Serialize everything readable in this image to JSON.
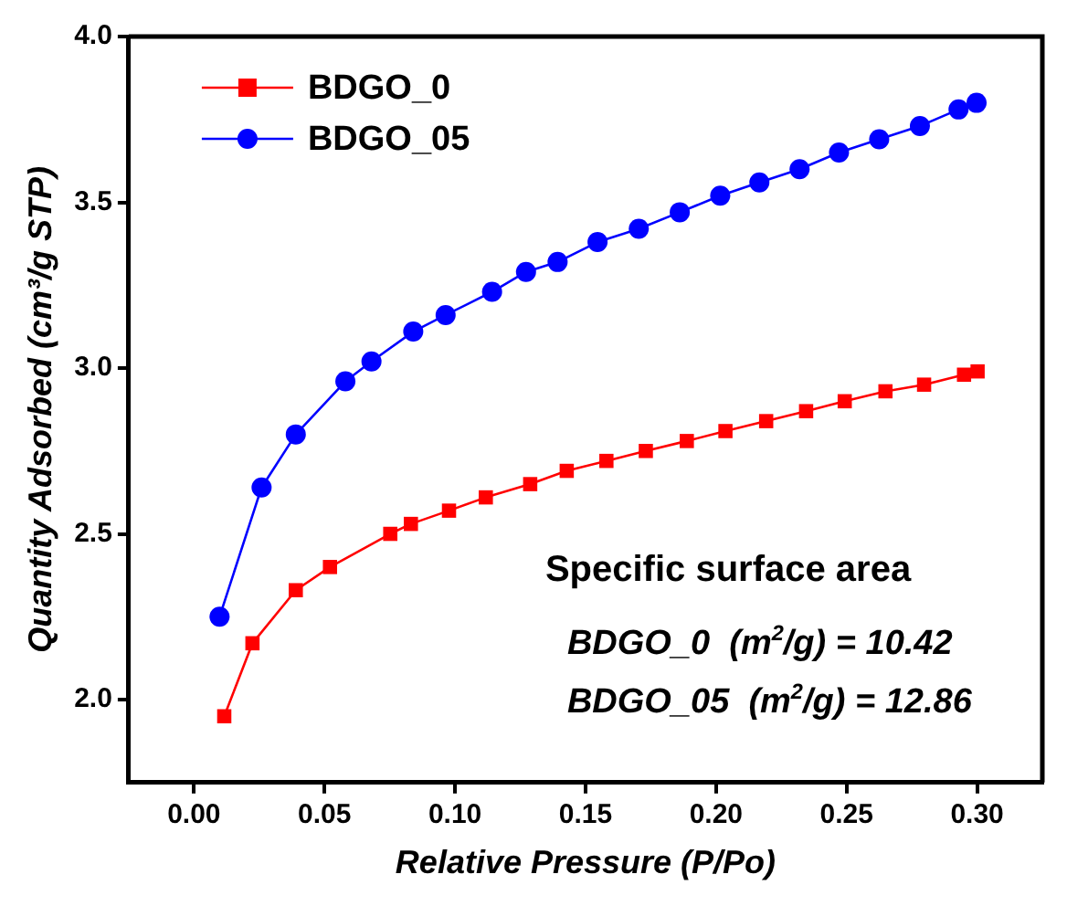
{
  "chart_data": {
    "type": "line",
    "xlabel": "Relative Pressure (P/Po)",
    "ylabel": "Quantity Adsorbed (cm³/g STP)",
    "xlim": [
      -0.025,
      0.325
    ],
    "xticks": [
      {
        "value": 0,
        "label": "0.00"
      },
      {
        "value": 0.05,
        "label": "0.05"
      },
      {
        "value": 0.1,
        "label": "0.10"
      },
      {
        "value": 0.15,
        "label": "0.15"
      },
      {
        "value": 0.2,
        "label": "0.20"
      },
      {
        "value": 0.25,
        "label": "0.25"
      },
      {
        "value": 0.3,
        "label": "0.30"
      }
    ],
    "ylim": [
      1.75,
      4.0
    ],
    "yticks": [
      {
        "value": 2,
        "label": "2.0"
      },
      2.5,
      {
        "value": 3,
        "label": "3.0"
      },
      3.5,
      {
        "value": 4,
        "label": "4.0"
      }
    ],
    "series": [
      {
        "name": "BDGO_0",
        "color": "#ff0000",
        "marker": "square",
        "x": [
          0.0116,
          0.0224,
          0.039,
          0.0521,
          0.0752,
          0.0831,
          0.0977,
          0.1118,
          0.1288,
          0.1428,
          0.158,
          0.1731,
          0.1888,
          0.2036,
          0.2192,
          0.2345,
          0.2493,
          0.2649,
          0.2797,
          0.295,
          0.3002
        ],
        "values": [
          1.95,
          2.17,
          2.33,
          2.4,
          2.5,
          2.53,
          2.57,
          2.61,
          2.65,
          2.69,
          2.72,
          2.75,
          2.78,
          2.81,
          2.84,
          2.87,
          2.9,
          2.93,
          2.95,
          2.98,
          2.99
        ]
      },
      {
        "name": "BDGO_05",
        "color": "#0000ff",
        "marker": "circle",
        "x": [
          0.0098,
          0.0259,
          0.039,
          0.058,
          0.068,
          0.084,
          0.0964,
          0.1142,
          0.1272,
          0.1393,
          0.1546,
          0.1704,
          0.1861,
          0.2016,
          0.2166,
          0.232,
          0.2471,
          0.2625,
          0.2781,
          0.2929,
          0.2998
        ],
        "values": [
          2.25,
          2.64,
          2.8,
          2.96,
          3.02,
          3.11,
          3.16,
          3.23,
          3.29,
          3.32,
          3.38,
          3.42,
          3.47,
          3.52,
          3.56,
          3.6,
          3.65,
          3.69,
          3.73,
          3.78,
          3.8
        ]
      }
    ],
    "legend": "top left",
    "grid": false,
    "line_style": "solid",
    "annotations": [
      "Specific surface area",
      "BDGO_0  (m$^{2}$/g) = 10.42",
      "BDGO_05  (m$^{2}$/g) = 12.86"
    ]
  }
}
